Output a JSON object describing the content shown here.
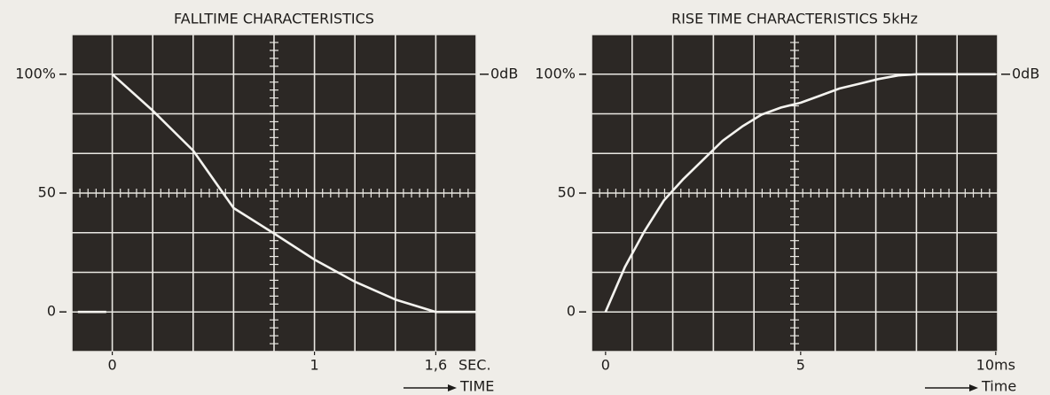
{
  "chart_data": [
    {
      "type": "line",
      "title": "FALLTIME CHARACTERISTICS",
      "x_unit_label": "SEC.",
      "xlabel": "TIME",
      "x": [
        -0.17,
        -0.03,
        -0.01,
        0,
        0.2,
        0.4,
        0.6,
        0.8,
        1.0,
        1.2,
        1.4,
        1.6,
        1.8
      ],
      "series": [
        {
          "color": "#f4f3ef",
          "values": [
            0,
            0,
            null,
            100,
            84.7,
            67.9,
            43.7,
            33,
            22,
            12.7,
            5.2,
            0,
            0
          ]
        }
      ],
      "xlim": [
        -0.2,
        1.8
      ],
      "xticks": [
        0,
        1,
        {
          "value": 1.6,
          "label": "1,6"
        }
      ],
      "ylim": [
        -16.7,
        116.7
      ],
      "yticks": [
        0,
        50,
        {
          "value": 100,
          "label": "100%"
        }
      ],
      "y2lim": [
        -16.7,
        116.7
      ],
      "y2ticks": [
        {
          "value": 100,
          "label": "0dB"
        }
      ]
    },
    {
      "type": "line",
      "title": "RISE TIME CHARACTERISTICS 5kHz",
      "xlabel": "Time",
      "x": [
        0,
        0.5,
        1,
        1.5,
        2,
        2.5,
        3,
        3.5,
        4,
        4.5,
        5,
        5.5,
        6,
        6.5,
        7,
        7.5,
        8,
        9,
        10
      ],
      "series": [
        {
          "color": "#f4f3ef",
          "values": [
            0,
            19,
            34,
            47,
            56,
            64,
            72,
            78,
            83,
            86,
            88,
            91,
            94,
            96,
            98,
            99.5,
            100,
            100,
            100
          ]
        }
      ],
      "xlim": [
        -0.36,
        10.05
      ],
      "xticks": [
        0,
        5,
        {
          "value": 10,
          "label": "10ms"
        }
      ],
      "ylim": [
        -16.7,
        116.7
      ],
      "yticks": [
        0,
        50,
        {
          "value": 100,
          "label": "100%"
        }
      ],
      "y2lim": [
        -16.7,
        116.7
      ],
      "y2ticks": [
        {
          "value": 100,
          "label": "0dB"
        }
      ]
    }
  ]
}
